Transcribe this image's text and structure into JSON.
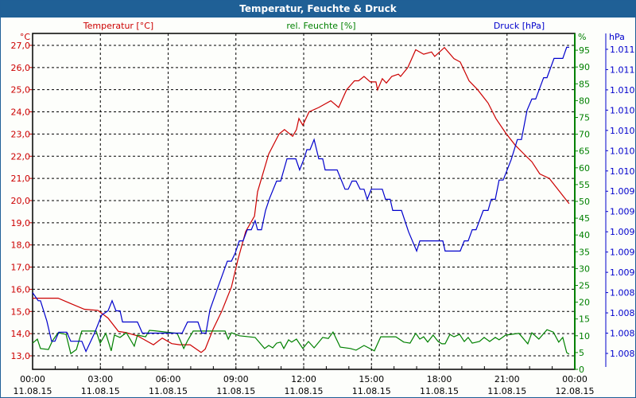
{
  "window": {
    "title": "Temperatur, Feuchte & Druck"
  },
  "chart_data": {
    "type": "line",
    "title": "Temperatur, Feuchte & Druck",
    "xlabel": "",
    "x_unit": "hours since 11.08.15 00:00",
    "xlim": [
      0,
      24
    ],
    "x_ticks": [
      {
        "time": "00:00",
        "date": "11.08.15"
      },
      {
        "time": "03:00",
        "date": "11.08.15"
      },
      {
        "time": "06:00",
        "date": "11.08.15"
      },
      {
        "time": "09:00",
        "date": "11.08.15"
      },
      {
        "time": "12:00",
        "date": "11.08.15"
      },
      {
        "time": "15:00",
        "date": "11.08.15"
      },
      {
        "time": "18:00",
        "date": "11.08.15"
      },
      {
        "time": "21:00",
        "date": "11.08.15"
      },
      {
        "time": "00:00",
        "date": "12.08.15"
      }
    ],
    "grid": true,
    "axes": {
      "temperature": {
        "label": "Temperatur [°C]",
        "unit": "°C",
        "side": "left",
        "color": "#cc0000",
        "ticks": [
          "13,0",
          "14,0",
          "15,0",
          "16,0",
          "17,0",
          "18,0",
          "19,0",
          "20,0",
          "21,0",
          "22,0",
          "23,0",
          "24,0",
          "25,0",
          "26,0",
          "27,0"
        ]
      },
      "humidity": {
        "label": "rel. Feuchte [%]",
        "unit": "%",
        "side": "right",
        "color": "#008000",
        "ticks": [
          "0",
          "5",
          "10",
          "15",
          "20",
          "25",
          "30",
          "35",
          "40",
          "45",
          "50",
          "55",
          "60",
          "65",
          "70",
          "75",
          "80",
          "85",
          "90",
          "95"
        ]
      },
      "pressure": {
        "label": "Druck [hPa]",
        "unit": "hPa",
        "side": "right",
        "color": "#0000cc",
        "ticks": [
          "1.008",
          "1.008",
          "1.008",
          "1.008",
          "1.009",
          "1.009",
          "1.009",
          "1.009",
          "1.009",
          "1.010",
          "1.010",
          "1.010",
          "1.010",
          "1.010",
          "1.011",
          "1.011"
        ]
      }
    },
    "series": [
      {
        "name": "Temperatur [°C]",
        "axis": "temperature",
        "color": "#cc0000",
        "points": [
          [
            0,
            15.6
          ],
          [
            1.13,
            15.6
          ],
          [
            1.58,
            15.4
          ],
          [
            2.29,
            15.1
          ],
          [
            2.89,
            15.05
          ],
          [
            3.34,
            14.7
          ],
          [
            3.8,
            14.1
          ],
          [
            4.12,
            14.05
          ],
          [
            4.64,
            13.9
          ],
          [
            5.35,
            13.5
          ],
          [
            5.74,
            13.8
          ],
          [
            6.16,
            13.55
          ],
          [
            6.51,
            13.5
          ],
          [
            6.97,
            13.5
          ],
          [
            7.46,
            13.15
          ],
          [
            7.64,
            13.3
          ],
          [
            7.99,
            14.2
          ],
          [
            8.37,
            15.0
          ],
          [
            8.8,
            16.1
          ],
          [
            9.08,
            17.3
          ],
          [
            9.43,
            18.6
          ],
          [
            9.82,
            19.3
          ],
          [
            9.96,
            20.4
          ],
          [
            10.45,
            22.1
          ],
          [
            10.91,
            23.0
          ],
          [
            11.15,
            23.2
          ],
          [
            11.51,
            22.9
          ],
          [
            11.68,
            23.2
          ],
          [
            11.79,
            23.7
          ],
          [
            11.96,
            23.4
          ],
          [
            12.24,
            24.0
          ],
          [
            12.67,
            24.2
          ],
          [
            13.2,
            24.5
          ],
          [
            13.55,
            24.2
          ],
          [
            13.9,
            25.0
          ],
          [
            14.25,
            25.4
          ],
          [
            14.43,
            25.4
          ],
          [
            14.67,
            25.6
          ],
          [
            14.95,
            25.35
          ],
          [
            15.2,
            25.35
          ],
          [
            15.27,
            25.0
          ],
          [
            15.48,
            25.5
          ],
          [
            15.66,
            25.3
          ],
          [
            15.9,
            25.6
          ],
          [
            16.19,
            25.7
          ],
          [
            16.29,
            25.6
          ],
          [
            16.61,
            26.0
          ],
          [
            16.96,
            26.8
          ],
          [
            17.31,
            26.6
          ],
          [
            17.66,
            26.7
          ],
          [
            17.8,
            26.5
          ],
          [
            18.23,
            26.9
          ],
          [
            18.65,
            26.4
          ],
          [
            18.93,
            26.25
          ],
          [
            19.32,
            25.4
          ],
          [
            19.7,
            25.0
          ],
          [
            20.16,
            24.4
          ],
          [
            20.51,
            23.7
          ],
          [
            20.94,
            23.05
          ],
          [
            21.36,
            22.5
          ],
          [
            21.75,
            22.1
          ],
          [
            22.1,
            21.75
          ],
          [
            22.45,
            21.2
          ],
          [
            22.87,
            21.0
          ],
          [
            23.33,
            20.4
          ],
          [
            23.75,
            19.86
          ]
        ]
      },
      {
        "name": "rel. Feuchte [%]",
        "axis": "humidity",
        "color": "#008000",
        "points": [
          [
            0,
            7.8
          ],
          [
            0.21,
            9
          ],
          [
            0.35,
            6.2
          ],
          [
            0.7,
            5.9
          ],
          [
            0.88,
            8.5
          ],
          [
            1.13,
            10.9
          ],
          [
            1.48,
            10.4
          ],
          [
            1.69,
            4.7
          ],
          [
            1.94,
            5.9
          ],
          [
            2.18,
            11.4
          ],
          [
            2.81,
            11.4
          ],
          [
            2.99,
            7.8
          ],
          [
            3.24,
            10.7
          ],
          [
            3.48,
            5.5
          ],
          [
            3.62,
            10.2
          ],
          [
            3.87,
            9.5
          ],
          [
            4.15,
            10.9
          ],
          [
            4.5,
            6.9
          ],
          [
            4.64,
            10.2
          ],
          [
            5.0,
            9.7
          ],
          [
            5.17,
            11.6
          ],
          [
            5.38,
            11.5
          ],
          [
            6.4,
            10.7
          ],
          [
            6.69,
            6.2
          ],
          [
            6.86,
            8.5
          ],
          [
            7.11,
            11.4
          ],
          [
            8.52,
            11.4
          ],
          [
            8.66,
            9
          ],
          [
            8.8,
            10.9
          ],
          [
            9.15,
            10.0
          ],
          [
            9.85,
            9.5
          ],
          [
            10.27,
            6.2
          ],
          [
            10.45,
            7.1
          ],
          [
            10.63,
            6.4
          ],
          [
            10.8,
            7.8
          ],
          [
            10.98,
            8.1
          ],
          [
            11.12,
            6.2
          ],
          [
            11.33,
            8.8
          ],
          [
            11.47,
            8.1
          ],
          [
            11.68,
            9.0
          ],
          [
            11.96,
            6.2
          ],
          [
            12.21,
            8.3
          ],
          [
            12.46,
            6.4
          ],
          [
            12.84,
            9.5
          ],
          [
            13.09,
            9.2
          ],
          [
            13.3,
            11.1
          ],
          [
            13.62,
            6.6
          ],
          [
            14.07,
            6.2
          ],
          [
            14.32,
            5.7
          ],
          [
            14.67,
            7.1
          ],
          [
            15.13,
            5.5
          ],
          [
            15.41,
            9.7
          ],
          [
            16.08,
            9.7
          ],
          [
            16.43,
            8.1
          ],
          [
            16.71,
            7.8
          ],
          [
            16.96,
            10.7
          ],
          [
            17.14,
            9.0
          ],
          [
            17.31,
            9.7
          ],
          [
            17.49,
            8.1
          ],
          [
            17.73,
            10.2
          ],
          [
            17.95,
            8.3
          ],
          [
            18.12,
            7.6
          ],
          [
            18.26,
            7.6
          ],
          [
            18.47,
            10.4
          ],
          [
            18.65,
            9.7
          ],
          [
            18.9,
            10.4
          ],
          [
            19.11,
            8.3
          ],
          [
            19.28,
            9.5
          ],
          [
            19.46,
            7.8
          ],
          [
            19.78,
            8.3
          ],
          [
            19.99,
            9.5
          ],
          [
            20.23,
            8.3
          ],
          [
            20.48,
            9.5
          ],
          [
            20.65,
            8.8
          ],
          [
            20.94,
            10.2
          ],
          [
            21.53,
            10.7
          ],
          [
            21.92,
            7.6
          ],
          [
            22.1,
            10.9
          ],
          [
            22.41,
            9.0
          ],
          [
            22.77,
            11.8
          ],
          [
            23.05,
            11.1
          ],
          [
            23.29,
            8.1
          ],
          [
            23.47,
            9.5
          ],
          [
            23.64,
            5.0
          ],
          [
            23.75,
            4.5
          ]
        ]
      },
      {
        "name": "Druck [hPa]",
        "axis": "pressure",
        "color": "#0000cc",
        "points": [
          [
            0,
            1008.4
          ],
          [
            0.25,
            1008.32
          ],
          [
            0.35,
            1008.32
          ],
          [
            0.63,
            1008.12
          ],
          [
            0.84,
            1007.92
          ],
          [
            0.99,
            1007.92
          ],
          [
            1.16,
            1008.01
          ],
          [
            1.51,
            1008.01
          ],
          [
            1.69,
            1007.92
          ],
          [
            2.18,
            1007.92
          ],
          [
            2.36,
            1007.82
          ],
          [
            2.74,
            1008.0
          ],
          [
            3.06,
            1008.18
          ],
          [
            3.34,
            1008.22
          ],
          [
            3.52,
            1008.32
          ],
          [
            3.69,
            1008.22
          ],
          [
            3.87,
            1008.22
          ],
          [
            3.98,
            1008.11
          ],
          [
            4.64,
            1008.11
          ],
          [
            4.86,
            1008.0
          ],
          [
            6.62,
            1008.0
          ],
          [
            6.86,
            1008.11
          ],
          [
            7.32,
            1008.11
          ],
          [
            7.49,
            1008.0
          ],
          [
            7.67,
            1008.0
          ],
          [
            7.85,
            1008.23
          ],
          [
            8.2,
            1008.45
          ],
          [
            8.62,
            1008.71
          ],
          [
            8.8,
            1008.71
          ],
          [
            8.97,
            1008.79
          ],
          [
            9.15,
            1008.91
          ],
          [
            9.32,
            1008.91
          ],
          [
            9.5,
            1009.02
          ],
          [
            9.68,
            1009.02
          ],
          [
            9.85,
            1009.11
          ],
          [
            9.96,
            1009.02
          ],
          [
            10.13,
            1009.02
          ],
          [
            10.31,
            1009.21
          ],
          [
            10.49,
            1009.33
          ],
          [
            10.8,
            1009.5
          ],
          [
            10.98,
            1009.5
          ],
          [
            11.26,
            1009.72
          ],
          [
            11.65,
            1009.72
          ],
          [
            11.82,
            1009.61
          ],
          [
            12.03,
            1009.73
          ],
          [
            12.14,
            1009.81
          ],
          [
            12.28,
            1009.81
          ],
          [
            12.46,
            1009.91
          ],
          [
            12.67,
            1009.72
          ],
          [
            12.84,
            1009.72
          ],
          [
            12.95,
            1009.61
          ],
          [
            13.48,
            1009.61
          ],
          [
            13.83,
            1009.42
          ],
          [
            13.97,
            1009.42
          ],
          [
            14.14,
            1009.5
          ],
          [
            14.32,
            1009.5
          ],
          [
            14.5,
            1009.42
          ],
          [
            14.67,
            1009.42
          ],
          [
            14.81,
            1009.32
          ],
          [
            14.99,
            1009.42
          ],
          [
            15.48,
            1009.42
          ],
          [
            15.62,
            1009.32
          ],
          [
            15.83,
            1009.32
          ],
          [
            15.94,
            1009.21
          ],
          [
            16.33,
            1009.21
          ],
          [
            16.64,
            1009.0
          ],
          [
            17.0,
            1008.81
          ],
          [
            17.14,
            1008.91
          ],
          [
            18.16,
            1008.91
          ],
          [
            18.26,
            1008.81
          ],
          [
            18.93,
            1008.81
          ],
          [
            19.11,
            1008.91
          ],
          [
            19.28,
            1008.91
          ],
          [
            19.46,
            1009.02
          ],
          [
            19.63,
            1009.02
          ],
          [
            19.95,
            1009.21
          ],
          [
            20.16,
            1009.21
          ],
          [
            20.3,
            1009.32
          ],
          [
            20.48,
            1009.32
          ],
          [
            20.65,
            1009.51
          ],
          [
            20.83,
            1009.51
          ],
          [
            21.18,
            1009.71
          ],
          [
            21.46,
            1009.91
          ],
          [
            21.64,
            1009.91
          ],
          [
            21.89,
            1010.2
          ],
          [
            22.1,
            1010.31
          ],
          [
            22.27,
            1010.31
          ],
          [
            22.62,
            1010.52
          ],
          [
            22.77,
            1010.52
          ],
          [
            23.08,
            1010.71
          ],
          [
            23.47,
            1010.71
          ],
          [
            23.64,
            1010.82
          ],
          [
            23.75,
            1010.82
          ]
        ]
      }
    ]
  }
}
